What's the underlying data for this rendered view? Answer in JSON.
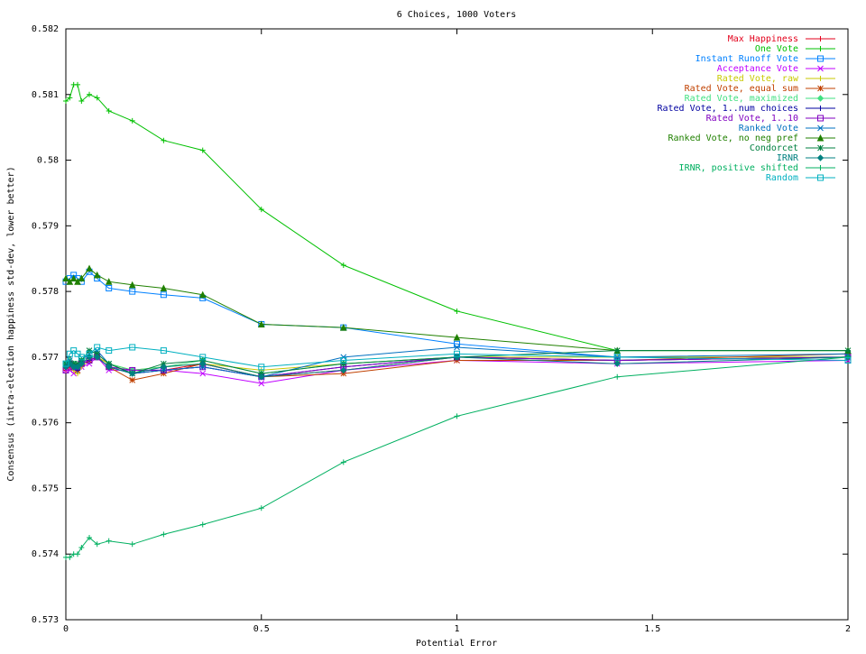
{
  "chart_data": {
    "type": "line",
    "title": "6 Choices, 1000 Voters",
    "xlabel": "Potential Error",
    "ylabel": "Consensus (intra-election happiness std-dev, lower better)",
    "xlim": [
      0,
      2
    ],
    "ylim": [
      0.573,
      0.582
    ],
    "xticks": [
      "0",
      "0.5",
      "1",
      "1.5",
      "2"
    ],
    "yticks": [
      "0.573",
      "0.574",
      "0.575",
      "0.576",
      "0.577",
      "0.578",
      "0.579",
      "0.58",
      "0.581",
      "0.582"
    ],
    "grid": false,
    "legend_position": "top-right",
    "x": [
      0,
      0.01,
      0.02,
      0.03,
      0.04,
      0.06,
      0.08,
      0.11,
      0.17,
      0.25,
      0.35,
      0.5,
      0.71,
      1.0,
      1.41,
      2.0
    ],
    "series": [
      {
        "name": "Max Happiness",
        "color": "#e3001b",
        "marker": "plus",
        "values": [
          0.5768,
          0.57685,
          0.5769,
          0.57685,
          0.5769,
          0.57695,
          0.577,
          0.5769,
          0.57675,
          0.5768,
          0.5769,
          0.5767,
          0.5768,
          0.577,
          0.57695,
          0.577
        ]
      },
      {
        "name": "One Vote",
        "color": "#00c000",
        "marker": "plus",
        "values": [
          0.5809,
          0.58095,
          0.58115,
          0.58115,
          0.5809,
          0.581,
          0.58095,
          0.58075,
          0.5806,
          0.5803,
          0.58015,
          0.57925,
          0.5784,
          0.5777,
          0.5771,
          0.5771
        ]
      },
      {
        "name": "Instant Runoff Vote",
        "color": "#0080ff",
        "marker": "square",
        "values": [
          0.57815,
          0.5782,
          0.57825,
          0.5782,
          0.57815,
          0.5783,
          0.5782,
          0.57805,
          0.578,
          0.57795,
          0.5779,
          0.5775,
          0.57745,
          0.5772,
          0.577,
          0.577
        ]
      },
      {
        "name": "Acceptance Vote",
        "color": "#c000ff",
        "marker": "x",
        "values": [
          0.5768,
          0.5768,
          0.57675,
          0.5768,
          0.57685,
          0.5769,
          0.577,
          0.5768,
          0.5768,
          0.5768,
          0.57675,
          0.5766,
          0.5768,
          0.57695,
          0.5769,
          0.57695
        ]
      },
      {
        "name": "Rated Vote, raw",
        "color": "#c8c800",
        "marker": "plus",
        "values": [
          0.5769,
          0.57695,
          0.5768,
          0.57675,
          0.57685,
          0.57695,
          0.577,
          0.5769,
          0.5768,
          0.57685,
          0.5769,
          0.5768,
          0.5769,
          0.577,
          0.577,
          0.577
        ]
      },
      {
        "name": "Rated Vote, equal sum",
        "color": "#c04000",
        "marker": "star",
        "values": [
          0.57685,
          0.5769,
          0.57685,
          0.5768,
          0.5769,
          0.57695,
          0.577,
          0.57685,
          0.57665,
          0.57675,
          0.5769,
          0.5767,
          0.57675,
          0.57695,
          0.57695,
          0.57705
        ]
      },
      {
        "name": "Rated Vote, maximized",
        "color": "#40e080",
        "marker": "diamond",
        "values": [
          0.5769,
          0.57695,
          0.5769,
          0.57685,
          0.57695,
          0.577,
          0.57705,
          0.5769,
          0.5768,
          0.57685,
          0.57695,
          0.57675,
          0.5769,
          0.577,
          0.57695,
          0.577
        ]
      },
      {
        "name": "Rated Vote, 1..num choices",
        "color": "#0000a0",
        "marker": "plus",
        "values": [
          0.57685,
          0.5769,
          0.57685,
          0.5768,
          0.5769,
          0.57695,
          0.577,
          0.57685,
          0.57675,
          0.5768,
          0.57685,
          0.5767,
          0.57685,
          0.577,
          0.57695,
          0.577
        ]
      },
      {
        "name": "Rated Vote, 1..10",
        "color": "#8000c0",
        "marker": "square",
        "values": [
          0.5768,
          0.5769,
          0.57685,
          0.57685,
          0.5769,
          0.57695,
          0.577,
          0.57685,
          0.5768,
          0.5768,
          0.57685,
          0.5767,
          0.57685,
          0.577,
          0.57695,
          0.577
        ]
      },
      {
        "name": "Ranked Vote",
        "color": "#0070c0",
        "marker": "x",
        "values": [
          0.5769,
          0.57695,
          0.5769,
          0.57685,
          0.57695,
          0.57705,
          0.5771,
          0.5769,
          0.57675,
          0.5768,
          0.57685,
          0.5767,
          0.577,
          0.57715,
          0.577,
          0.57705
        ]
      },
      {
        "name": "Ranked Vote, no neg pref",
        "color": "#208000",
        "marker": "triangle",
        "values": [
          0.5782,
          0.57815,
          0.5782,
          0.57815,
          0.5782,
          0.57835,
          0.57825,
          0.57815,
          0.5781,
          0.57805,
          0.57795,
          0.5775,
          0.57745,
          0.5773,
          0.5771,
          0.5771
        ]
      },
      {
        "name": "Condorcet",
        "color": "#008040",
        "marker": "star",
        "values": [
          0.5769,
          0.5769,
          0.5769,
          0.5769,
          0.57695,
          0.5771,
          0.57705,
          0.5769,
          0.57675,
          0.5769,
          0.57695,
          0.57675,
          0.5769,
          0.577,
          0.5771,
          0.5771
        ]
      },
      {
        "name": "IRNR",
        "color": "#008080",
        "marker": "diamond",
        "values": [
          0.57685,
          0.5769,
          0.57685,
          0.57685,
          0.5769,
          0.577,
          0.577,
          0.57685,
          0.57675,
          0.57685,
          0.5769,
          0.5767,
          0.5768,
          0.577,
          0.5769,
          0.577
        ]
      },
      {
        "name": "IRNR, positive shifted",
        "color": "#00b060",
        "marker": "plus",
        "values": [
          0.57395,
          0.57395,
          0.574,
          0.574,
          0.5741,
          0.57425,
          0.57415,
          0.5742,
          0.57415,
          0.5743,
          0.57445,
          0.5747,
          0.5754,
          0.5761,
          0.5767,
          0.577
        ]
      },
      {
        "name": "Random",
        "color": "#00b0c0",
        "marker": "square",
        "values": [
          0.5769,
          0.57705,
          0.5771,
          0.57705,
          0.577,
          0.57705,
          0.57715,
          0.5771,
          0.57715,
          0.5771,
          0.577,
          0.57685,
          0.57695,
          0.57705,
          0.577,
          0.57695
        ]
      }
    ]
  }
}
